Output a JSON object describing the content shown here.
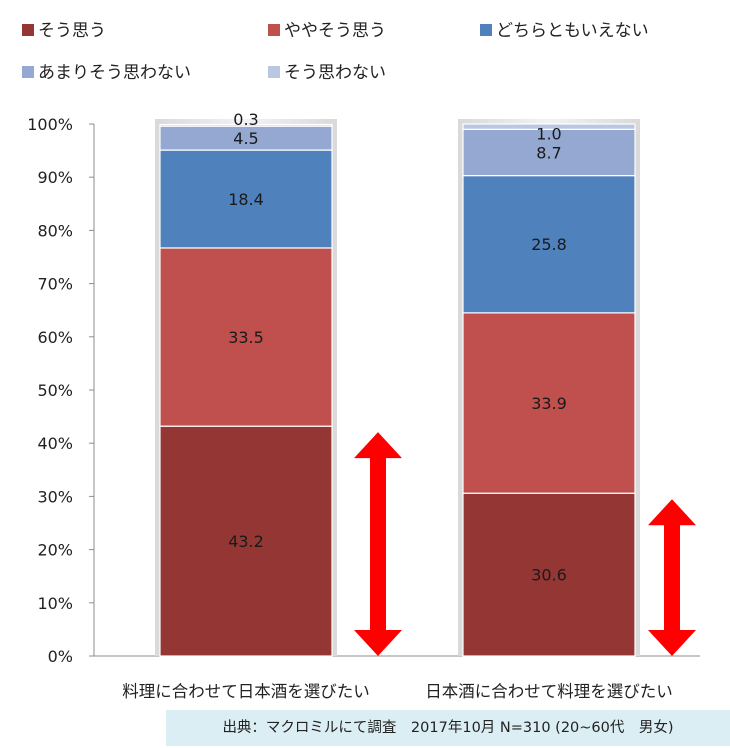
{
  "source_note": "出典：マクロミルにて調査　2017年10月 N=310 (20~60代　男女)",
  "chart_data": {
    "type": "bar",
    "stacked": true,
    "categories": [
      "料理に合わせて日本酒を選びたい",
      "日本酒に合わせて料理を選びたい"
    ],
    "series": [
      {
        "name": "そう思う",
        "color": "#943634",
        "values": [
          43.2,
          30.6
        ]
      },
      {
        "name": "ややそう思う",
        "color": "#c0504d",
        "values": [
          33.5,
          33.9
        ]
      },
      {
        "name": "どちらともいえない",
        "color": "#4f81bd",
        "values": [
          18.4,
          25.8
        ]
      },
      {
        "name": "あまりそう思わない",
        "color": "#95a8d1",
        "values": [
          4.5,
          8.7
        ]
      },
      {
        "name": "そう思わない",
        "color": "#b9c7e2",
        "values": [
          0.3,
          1.0
        ]
      }
    ],
    "y_ticks": [
      "0%",
      "10%",
      "20%",
      "30%",
      "40%",
      "50%",
      "60%",
      "70%",
      "80%",
      "90%",
      "100%"
    ],
    "ylim": [
      0,
      100
    ],
    "grid": false,
    "legend_position": "top",
    "annotations": [
      {
        "type": "double-arrow",
        "color": "#ff0000",
        "category_index": 0,
        "spans": "そう思う"
      },
      {
        "type": "double-arrow",
        "color": "#ff0000",
        "category_index": 1,
        "spans": "そう思う"
      }
    ]
  }
}
